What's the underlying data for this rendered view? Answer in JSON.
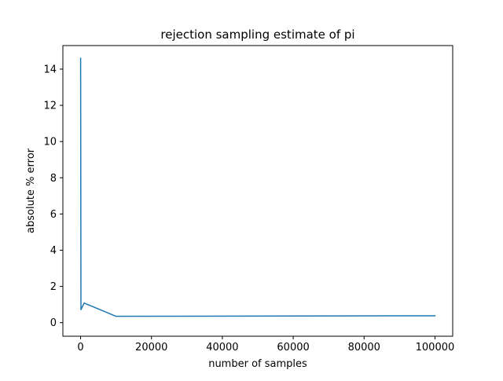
{
  "chart_data": {
    "type": "line",
    "title": "rejection sampling estimate of pi",
    "xlabel": "number of samples",
    "ylabel": "absolute % error",
    "xlim": [
      -5000,
      105000
    ],
    "ylim": [
      -0.75,
      15.3
    ],
    "xticks": [
      0,
      20000,
      40000,
      60000,
      80000,
      100000
    ],
    "xtick_labels": [
      "0",
      "20000",
      "40000",
      "60000",
      "80000",
      "100000"
    ],
    "yticks": [
      0,
      2,
      4,
      6,
      8,
      10,
      12,
      14
    ],
    "ytick_labels": [
      "0",
      "2",
      "4",
      "6",
      "8",
      "10",
      "12",
      "14"
    ],
    "grid": false,
    "legend": "none",
    "series": [
      {
        "color": "#1f77b4",
        "x": [
          10,
          100,
          1000,
          10000,
          100000
        ],
        "y": [
          14.6,
          0.72,
          1.08,
          0.35,
          0.38
        ]
      }
    ]
  }
}
